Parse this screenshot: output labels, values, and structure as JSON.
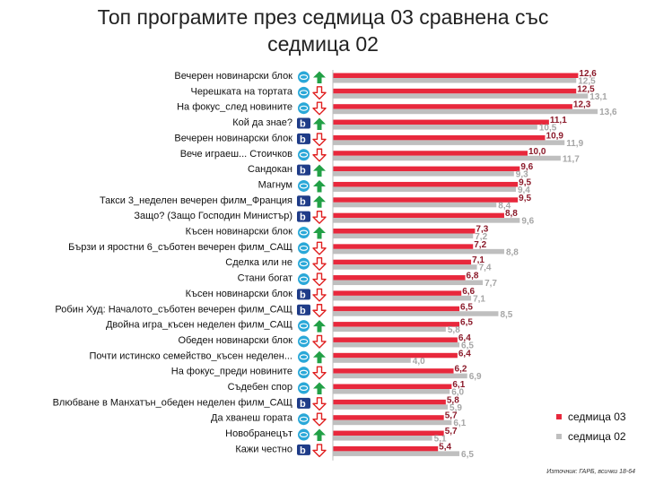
{
  "title_line1": "Топ програмите през седмица 03 сравнена със",
  "title_line2": "седмица 02",
  "source": "Източник: ГАРБ, всички 18-64",
  "colors": {
    "series_current": "#e8283c",
    "series_previous": "#bfbfbf",
    "value_current": "#8b1a2a",
    "value_previous": "#a6a6a6",
    "arrow_up": "#22a046",
    "arrow_down": "#e02020",
    "btv_logo": "#1f3c88",
    "nova_logo": "#2aa8d8"
  },
  "chart_data": {
    "type": "bar",
    "orientation": "horizontal",
    "categories": [
      "Вечерен новинарски блок",
      "Черешката на тортата",
      "На фокус_след новините",
      "Кой да знае?",
      "Вечерен новинарски блок",
      "Вече играеш... Стоичков",
      "Сандокан",
      "Магнум",
      "Такси 3_неделен вечерен филм_Франция",
      "Защо? (Защо Господин Министър)",
      "Късен новинарски блок",
      "Бързи и яростни 6_съботен вечерен филм_САЩ",
      "Сделка или не",
      "Стани богат",
      "Късен новинарски блок",
      "Робин Худ: Началото_съботен вечерен филм_САЩ",
      "Двойна игра_късен неделен филм_САЩ",
      "Обеден новинарски блок",
      "Почти истинско семейство_късен неделен...",
      "На фокус_преди новините",
      "Съдебен спор",
      "Влюбване в Манхатън_обеден неделен филм_САЩ",
      "Да хванеш гората",
      "Новобранецът",
      "Кажи честно"
    ],
    "channels": [
      "nova",
      "nova",
      "nova",
      "btv",
      "btv",
      "nova",
      "btv",
      "nova",
      "btv",
      "btv",
      "nova",
      "nova",
      "nova",
      "nova",
      "btv",
      "btv",
      "nova",
      "nova",
      "nova",
      "nova",
      "nova",
      "btv",
      "nova",
      "nova",
      "btv"
    ],
    "trends": [
      "up",
      "down",
      "down",
      "up",
      "down",
      "down",
      "up",
      "up",
      "up",
      "down",
      "up",
      "down",
      "down",
      "down",
      "down",
      "down",
      "up",
      "down",
      "up",
      "down",
      "up",
      "down",
      "down",
      "up",
      "down"
    ],
    "series": [
      {
        "name": "седмица 03",
        "values": [
          12.6,
          12.5,
          12.3,
          11.1,
          10.9,
          10.0,
          9.6,
          9.5,
          9.5,
          8.8,
          7.3,
          7.2,
          7.1,
          6.8,
          6.6,
          6.5,
          6.5,
          6.4,
          6.4,
          6.2,
          6.1,
          5.8,
          5.7,
          5.7,
          5.4
        ],
        "labels": [
          "12,6",
          "12,5",
          "12,3",
          "11,1",
          "10,9",
          "10,0",
          "9,6",
          "9,5",
          "9,5",
          "8,8",
          "7,3",
          "7,2",
          "7,1",
          "6,8",
          "6,6",
          "6,5",
          "6,5",
          "6,4",
          "6,4",
          "6,2",
          "6,1",
          "5,8",
          "5,7",
          "5,7",
          "5,4"
        ]
      },
      {
        "name": "седмица 02",
        "values": [
          12.5,
          13.1,
          13.6,
          10.5,
          11.9,
          11.7,
          9.3,
          9.4,
          8.4,
          9.6,
          7.2,
          8.8,
          7.4,
          7.7,
          7.1,
          8.5,
          5.8,
          6.5,
          4.0,
          6.9,
          6.0,
          5.9,
          6.1,
          5.1,
          6.5
        ],
        "labels": [
          "12,5",
          "13,1",
          "13,6",
          "10,5",
          "11,9",
          "11,7",
          "9,3",
          "9,4",
          "8,4",
          "9,6",
          "7,2",
          "8,8",
          "7,4",
          "7,7",
          "7,1",
          "8,5",
          "5,8",
          "6,5",
          "4,0",
          "6,9",
          "6,0",
          "5,9",
          "6,1",
          "5,1",
          "6,5"
        ]
      }
    ],
    "xlim": [
      0,
      14
    ],
    "legend_position": "right",
    "grid": false
  }
}
